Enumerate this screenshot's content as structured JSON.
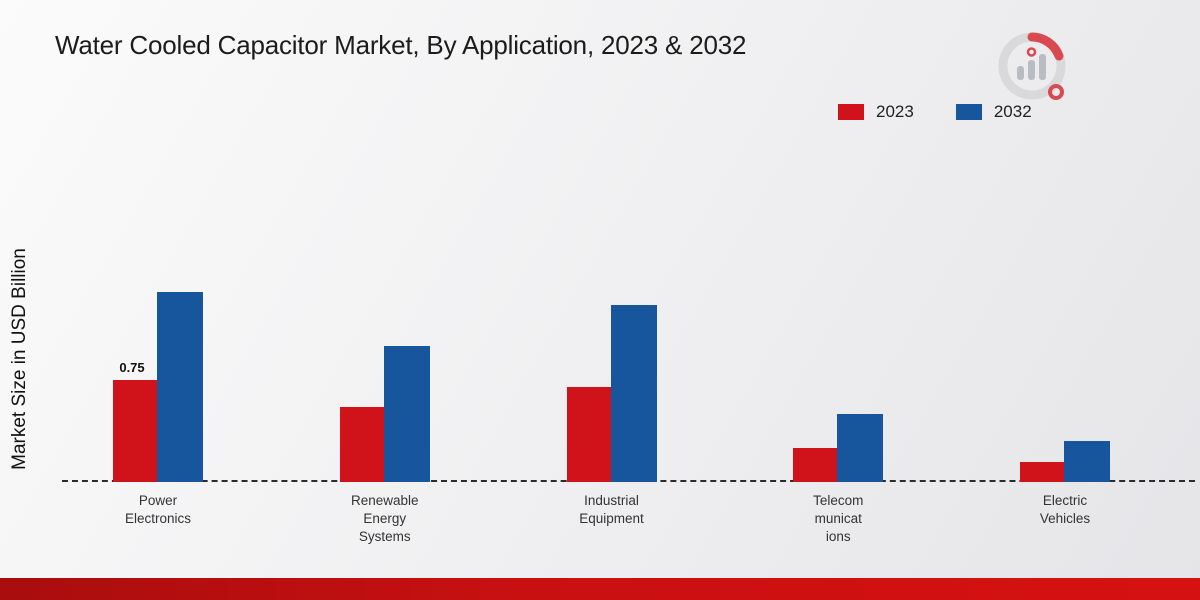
{
  "page": {
    "title": "Water Cooled Capacitor Market, By Application, 2023 & 2032"
  },
  "chart_data": {
    "type": "bar",
    "title": "Water Cooled Capacitor Market, By Application, 2023 & 2032",
    "xlabel": "",
    "ylabel": "Market Size in USD Billion",
    "categories": [
      "Power\nElectronics",
      "Renewable\nEnergy\nSystems",
      "Industrial\nEquipment",
      "Telecom\nmunicat\nions",
      "Electric\nVehicles"
    ],
    "series": [
      {
        "name": "2023",
        "color": "#d0121b",
        "values": [
          0.75,
          0.55,
          0.7,
          0.25,
          0.15
        ]
      },
      {
        "name": "2032",
        "color": "#17559c",
        "values": [
          1.4,
          1.0,
          1.3,
          0.5,
          0.3
        ]
      }
    ],
    "ylim": [
      0,
      1.5
    ],
    "grid": false,
    "legend_position": "top-right",
    "baseline_style": "dashed",
    "value_labels": [
      {
        "series": "2023",
        "category_index": 0,
        "text": "0.75"
      }
    ]
  },
  "colors": {
    "series_2023": "#d0121b",
    "series_2032": "#17559c",
    "bottom_bar": "#c91011",
    "background_start": "#fbfbfb",
    "background_end": "#e5e5e8"
  }
}
